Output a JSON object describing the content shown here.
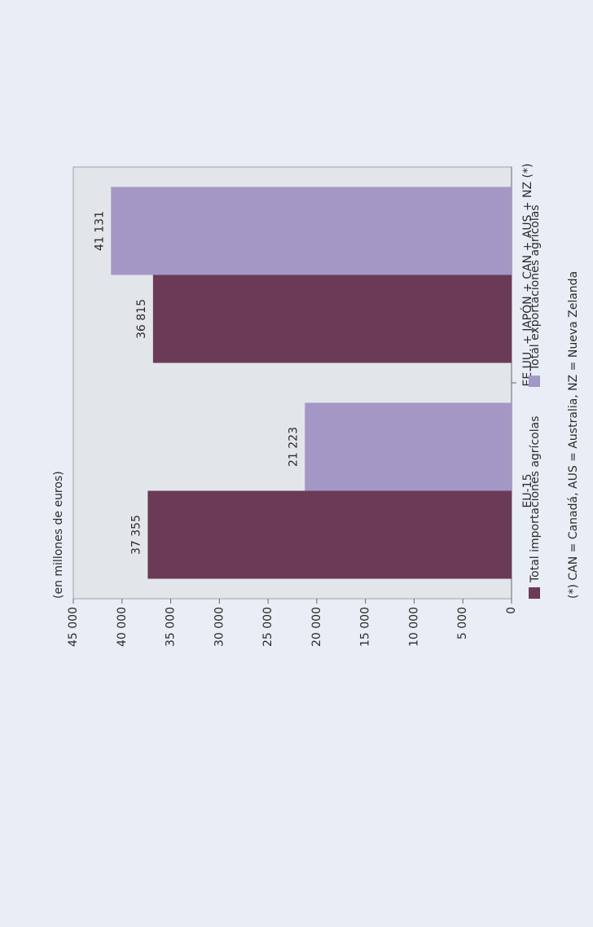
{
  "chart_data": {
    "type": "bar",
    "title": "(en millones de euros)",
    "categories": [
      "EU-15",
      "EE.UU. + JAPÓN + CAN + AUS + NZ (*)"
    ],
    "series": [
      {
        "name": "Total importaciones agrícolas",
        "color": "#6b3a57",
        "values": [
          37355,
          36815
        ],
        "value_labels": [
          "37 355",
          "36 815"
        ]
      },
      {
        "name": "Total exportaciones agrícolas",
        "color": "#a497c6",
        "values": [
          21223,
          41131
        ],
        "value_labels": [
          "21 223",
          "41 131"
        ]
      }
    ],
    "ylim": [
      0,
      45000
    ],
    "yticks": [
      0,
      {
        "value": 5000,
        "label": "5 000"
      },
      {
        "value": 10000,
        "label": "10 000"
      },
      {
        "value": 15000,
        "label": "15 000"
      },
      {
        "value": 20000,
        "label": "20 000"
      },
      {
        "value": 25000,
        "label": "25 000"
      },
      {
        "value": 30000,
        "label": "30 000"
      },
      {
        "value": 35000,
        "label": "35 000"
      },
      {
        "value": 40000,
        "label": "40 000"
      },
      {
        "value": 45000,
        "label": "45 000"
      }
    ],
    "annotations": [
      "(*) CAN = Canadá, AUS = Australia, NZ = Nueva Zelanda"
    ]
  }
}
